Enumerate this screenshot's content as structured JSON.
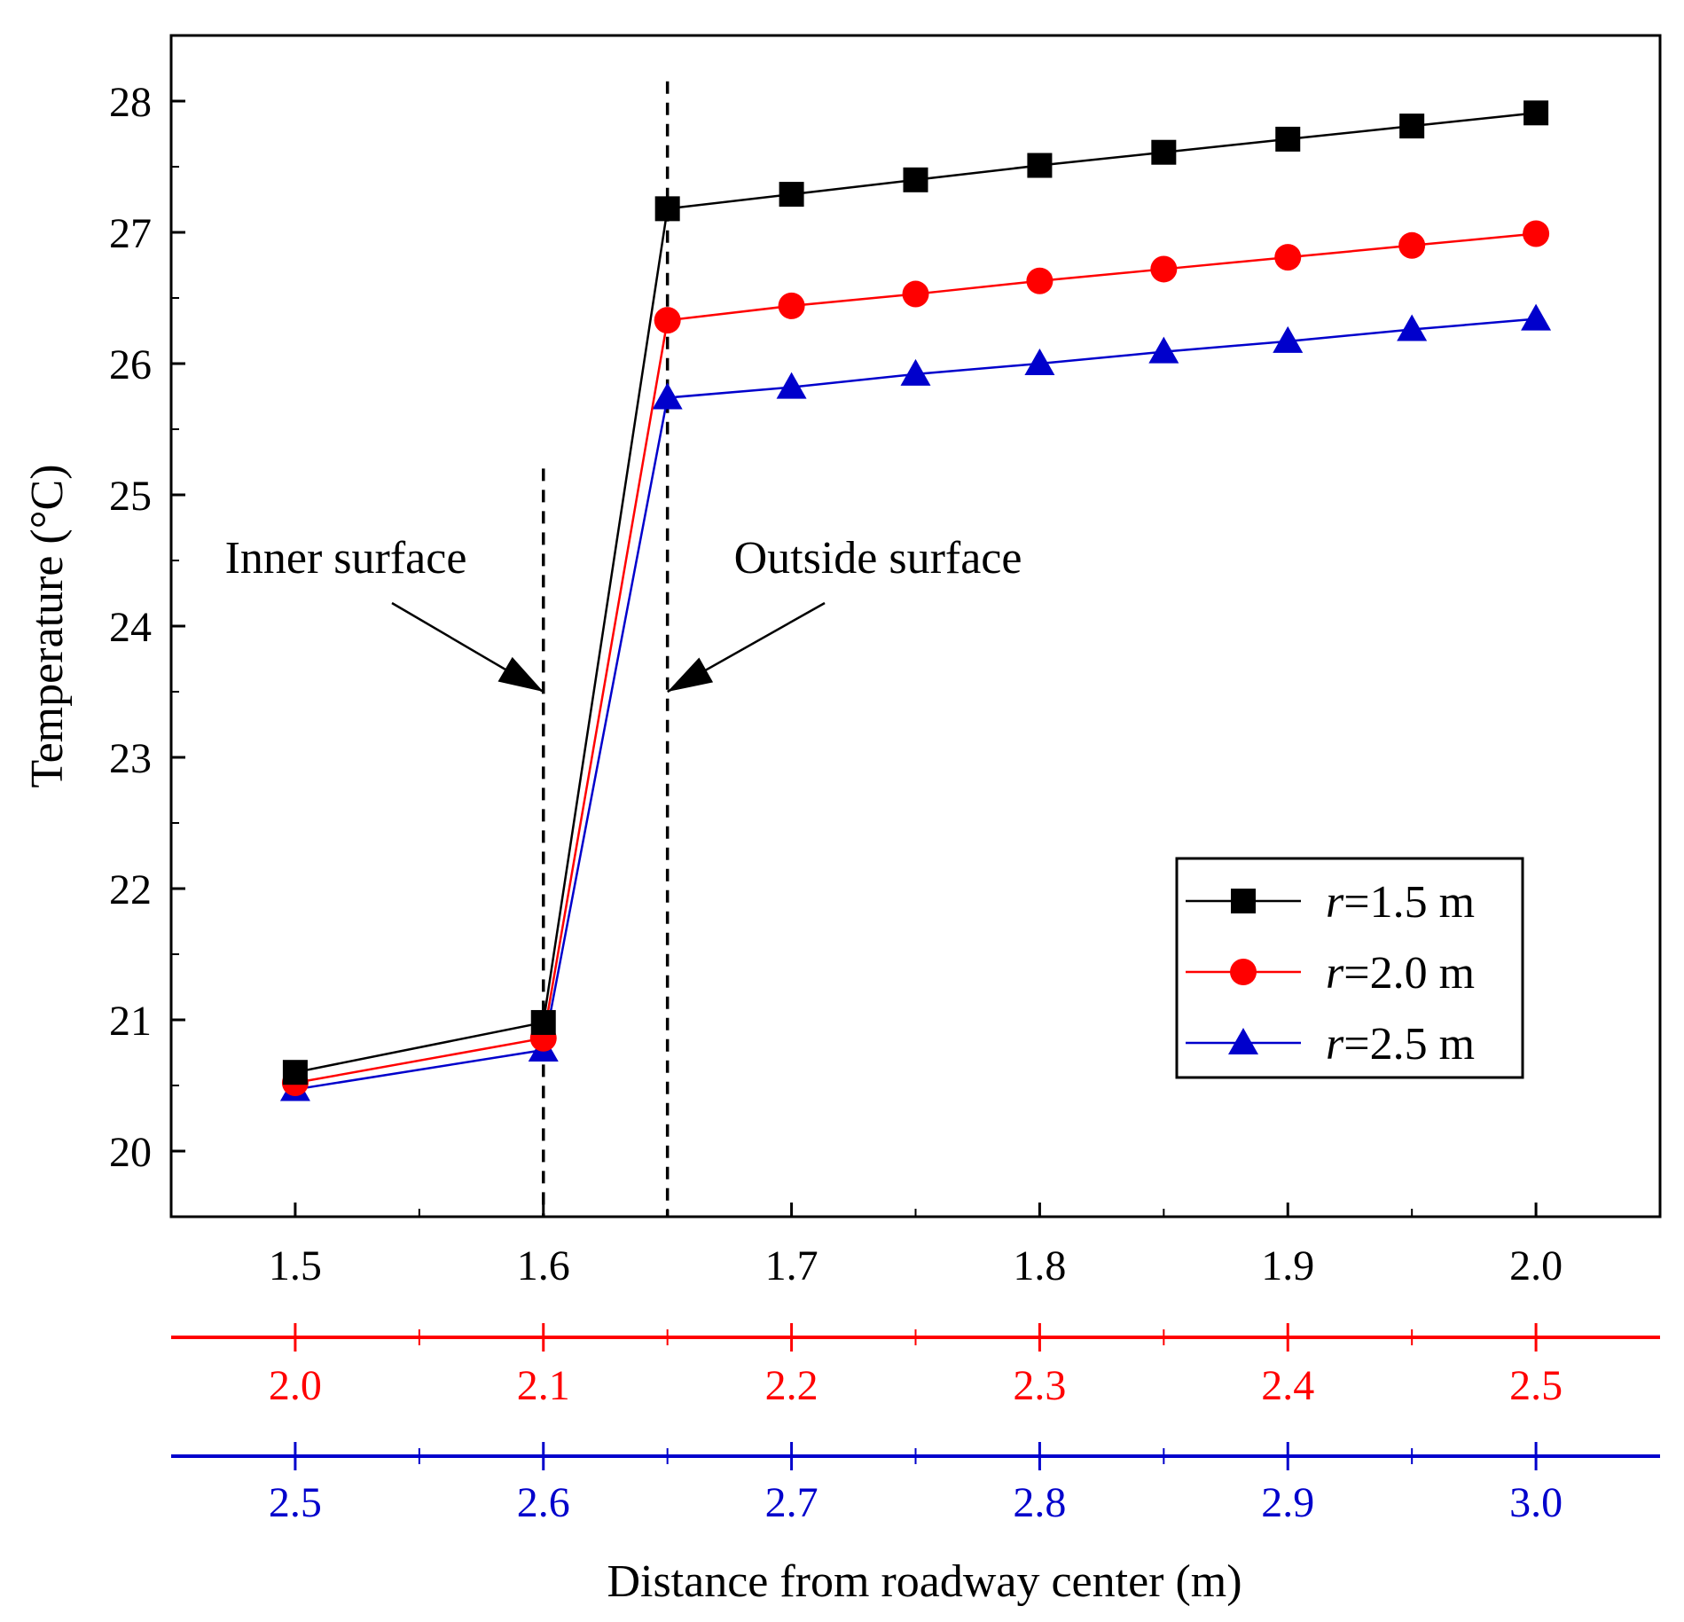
{
  "chart_data": {
    "type": "line",
    "ylabel": "Temperature (°C)",
    "xlabel": "Distance from roadway center (m)",
    "ylim": [
      19.5,
      28.5
    ],
    "yticks": [
      20,
      21,
      22,
      23,
      24,
      25,
      26,
      27,
      28
    ],
    "x": [
      1.5,
      1.6,
      1.65,
      1.7,
      1.75,
      1.8,
      1.85,
      1.9,
      1.95,
      2.0
    ],
    "xlim": [
      1.45,
      2.05
    ],
    "x_axes": [
      {
        "name": "r=1.5 m",
        "color": "#000000",
        "ticks": [
          1.5,
          1.6,
          1.7,
          1.8,
          1.9,
          2.0
        ],
        "tick_labels": [
          "1.5",
          "1.6",
          "1.7",
          "1.8",
          "1.9",
          "2.0"
        ]
      },
      {
        "name": "r=2.0 m",
        "color": "#ff0000",
        "ticks": [
          1.5,
          1.6,
          1.7,
          1.8,
          1.9,
          2.0
        ],
        "tick_labels": [
          "2.0",
          "2.1",
          "2.2",
          "2.3",
          "2.4",
          "2.5"
        ]
      },
      {
        "name": "r=2.5 m",
        "color": "#0000cc",
        "ticks": [
          1.5,
          1.6,
          1.7,
          1.8,
          1.9,
          2.0
        ],
        "tick_labels": [
          "2.5",
          "2.6",
          "2.7",
          "2.8",
          "2.9",
          "3.0"
        ]
      }
    ],
    "series": [
      {
        "name_prefix": "r",
        "name_rest": "=1.5 m",
        "color": "#000000",
        "marker": "square",
        "values": [
          20.6,
          20.98,
          27.18,
          27.29,
          27.4,
          27.51,
          27.61,
          27.71,
          27.81,
          27.91
        ]
      },
      {
        "name_prefix": "r",
        "name_rest": "=2.0 m",
        "color": "#ff0000",
        "marker": "circle",
        "values": [
          20.52,
          20.86,
          26.33,
          26.44,
          26.53,
          26.63,
          26.72,
          26.81,
          26.9,
          26.99
        ]
      },
      {
        "name_prefix": "r",
        "name_rest": "=2.5 m",
        "color": "#0000cc",
        "marker": "triangle",
        "values": [
          20.47,
          20.77,
          25.74,
          25.82,
          25.92,
          26.0,
          26.09,
          26.17,
          26.26,
          26.34
        ]
      }
    ],
    "vlines": [
      {
        "x": 1.6,
        "y_top": 25.2,
        "label": "Inner surface"
      },
      {
        "x": 1.65,
        "y_top": 28.15,
        "label": "Outside surface"
      }
    ],
    "annotations": [
      {
        "text": "Inner surface",
        "arrow_to_x": 1.6,
        "arrow_to_y": 23.5
      },
      {
        "text": "Outside surface",
        "arrow_to_x": 1.65,
        "arrow_to_y": 23.5
      }
    ],
    "legend_position": "bottom-right"
  }
}
